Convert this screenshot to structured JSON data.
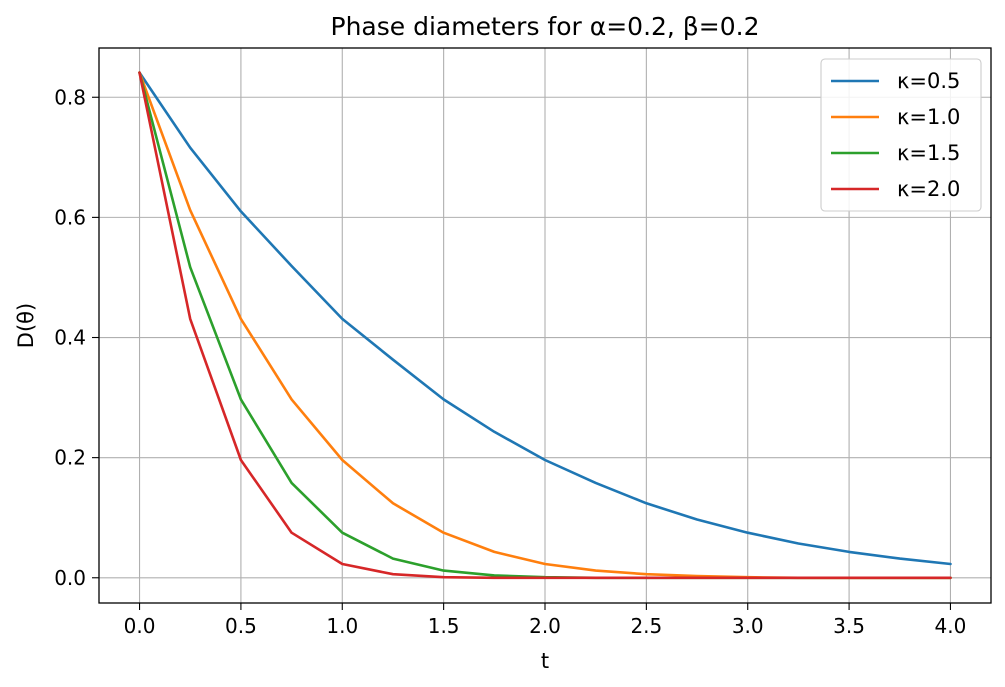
{
  "chart_data": {
    "type": "line",
    "title": "Phase diameters for α=0.2, β=0.2",
    "xlabel": "t",
    "ylabel": "D(θ)",
    "xlim": [
      -0.2,
      4.2
    ],
    "ylim": [
      -0.042,
      0.882
    ],
    "x_ticks": [
      0.0,
      0.5,
      1.0,
      1.5,
      2.0,
      2.5,
      3.0,
      3.5,
      4.0
    ],
    "x_tick_labels": [
      "0.0",
      "0.5",
      "1.0",
      "1.5",
      "2.0",
      "2.5",
      "3.0",
      "3.5",
      "4.0"
    ],
    "y_ticks": [
      0.0,
      0.2,
      0.4,
      0.6,
      0.8
    ],
    "y_tick_labels": [
      "0.0",
      "0.2",
      "0.4",
      "0.6",
      "0.8"
    ],
    "grid": true,
    "legend_position": "top-right",
    "x": [
      0.0,
      0.25,
      0.5,
      0.75,
      1.0,
      1.25,
      1.5,
      1.75,
      2.0,
      2.25,
      2.5,
      2.75,
      3.0,
      3.25,
      3.5,
      3.75,
      4.0
    ],
    "series": [
      {
        "name": "κ=0.5",
        "color": "#1f77b4",
        "values": [
          0.841,
          0.716,
          0.61,
          0.519,
          0.431,
          0.363,
          0.297,
          0.243,
          0.196,
          0.158,
          0.124,
          0.097,
          0.075,
          0.057,
          0.043,
          0.032,
          0.023
        ]
      },
      {
        "name": "κ=1.0",
        "color": "#ff7f0e",
        "values": [
          0.841,
          0.612,
          0.431,
          0.297,
          0.196,
          0.124,
          0.075,
          0.043,
          0.023,
          0.012,
          0.006,
          0.003,
          0.001,
          0.0,
          0.0,
          0.0,
          0.0
        ]
      },
      {
        "name": "κ=1.5",
        "color": "#2ca02c",
        "values": [
          0.841,
          0.517,
          0.297,
          0.158,
          0.075,
          0.032,
          0.012,
          0.004,
          0.001,
          0.0,
          0.0,
          0.0,
          0.0,
          0.0,
          0.0,
          0.0,
          0.0
        ]
      },
      {
        "name": "κ=2.0",
        "color": "#d62728",
        "values": [
          0.841,
          0.431,
          0.196,
          0.075,
          0.023,
          0.006,
          0.001,
          0.0,
          0.0,
          0.0,
          0.0,
          0.0,
          0.0,
          0.0,
          0.0,
          0.0,
          0.0
        ]
      }
    ]
  }
}
